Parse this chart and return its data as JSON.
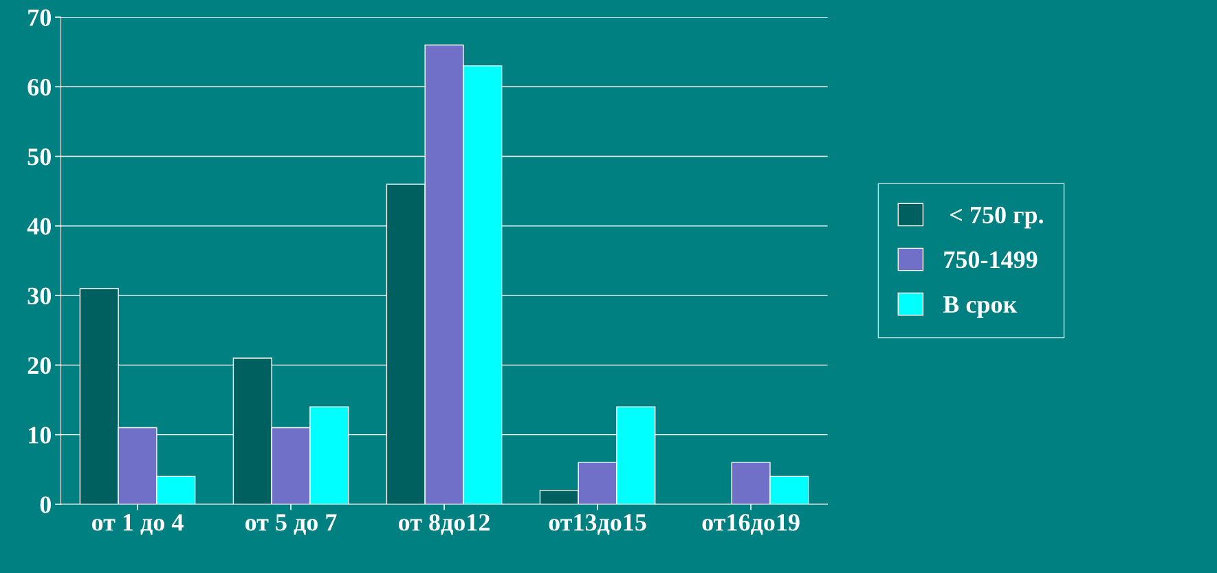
{
  "chart_data": {
    "type": "bar",
    "categories": [
      "от 1 до 4",
      "от 5 до 7",
      "от 8до12",
      "от13до15",
      "от16до19"
    ],
    "series": [
      {
        "name": " < 750 гр.",
        "color": "#006060",
        "values": [
          31,
          21,
          46,
          2,
          0
        ]
      },
      {
        "name": "750-1499",
        "color": "#7070c8",
        "values": [
          11,
          11,
          66,
          6,
          6
        ]
      },
      {
        "name": "В срок",
        "color": "#00ffff",
        "values": [
          4,
          14,
          63,
          14,
          4
        ]
      }
    ],
    "ylim": [
      0,
      70
    ],
    "yticks": [
      0,
      10,
      20,
      30,
      40,
      50,
      60,
      70
    ],
    "grid": "y",
    "legend": "right"
  }
}
